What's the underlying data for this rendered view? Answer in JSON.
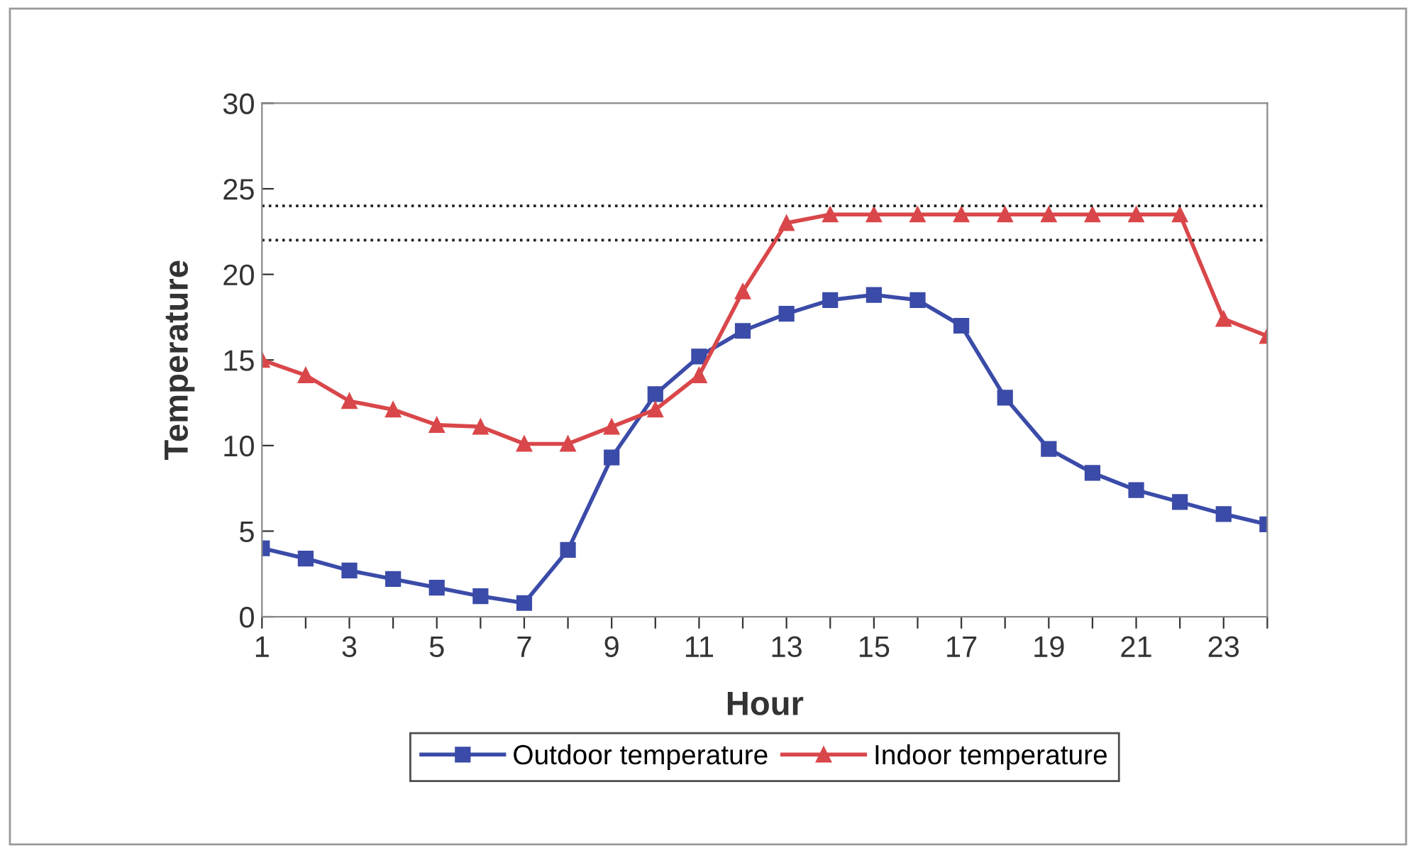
{
  "chart_data": {
    "type": "line",
    "xlabel": "Hour",
    "ylabel": "Temperature",
    "categories": [
      "1",
      null,
      "3",
      null,
      "5",
      null,
      "7",
      null,
      "9",
      null,
      "11",
      null,
      "13",
      null,
      "15",
      null,
      "17",
      null,
      "19",
      null,
      "21",
      null,
      "23",
      null
    ],
    "series": [
      {
        "name": "Outdoor temperature",
        "color": "#3b4ba8",
        "marker": "square",
        "values": [
          4.0,
          3.4,
          2.7,
          2.2,
          1.7,
          1.2,
          0.8,
          3.9,
          9.3,
          13.0,
          15.2,
          16.7,
          17.7,
          18.5,
          18.8,
          18.5,
          17.0,
          12.8,
          9.8,
          8.4,
          7.4,
          6.7,
          6.0,
          5.4
        ]
      },
      {
        "name": "Indoor temperature",
        "color": "#d9474a",
        "marker": "triangle",
        "values": [
          15.0,
          14.1,
          12.6,
          12.1,
          11.2,
          11.1,
          10.1,
          10.1,
          11.1,
          12.1,
          14.1,
          19.0,
          23.0,
          23.5,
          23.5,
          23.5,
          23.5,
          23.5,
          23.5,
          23.5,
          23.5,
          23.5,
          17.4,
          16.4
        ]
      }
    ],
    "ylim": [
      0,
      30
    ],
    "yticks": [
      0,
      5,
      10,
      15,
      20,
      25,
      30
    ],
    "ref_lines": [
      {
        "axis": "y",
        "value": 24,
        "color": "#222222",
        "line_style": "dotted"
      },
      {
        "axis": "y",
        "value": 22,
        "color": "#222222",
        "line_style": "dotted"
      }
    ],
    "grid": false,
    "legend": "bottom",
    "line_style": "solid"
  }
}
